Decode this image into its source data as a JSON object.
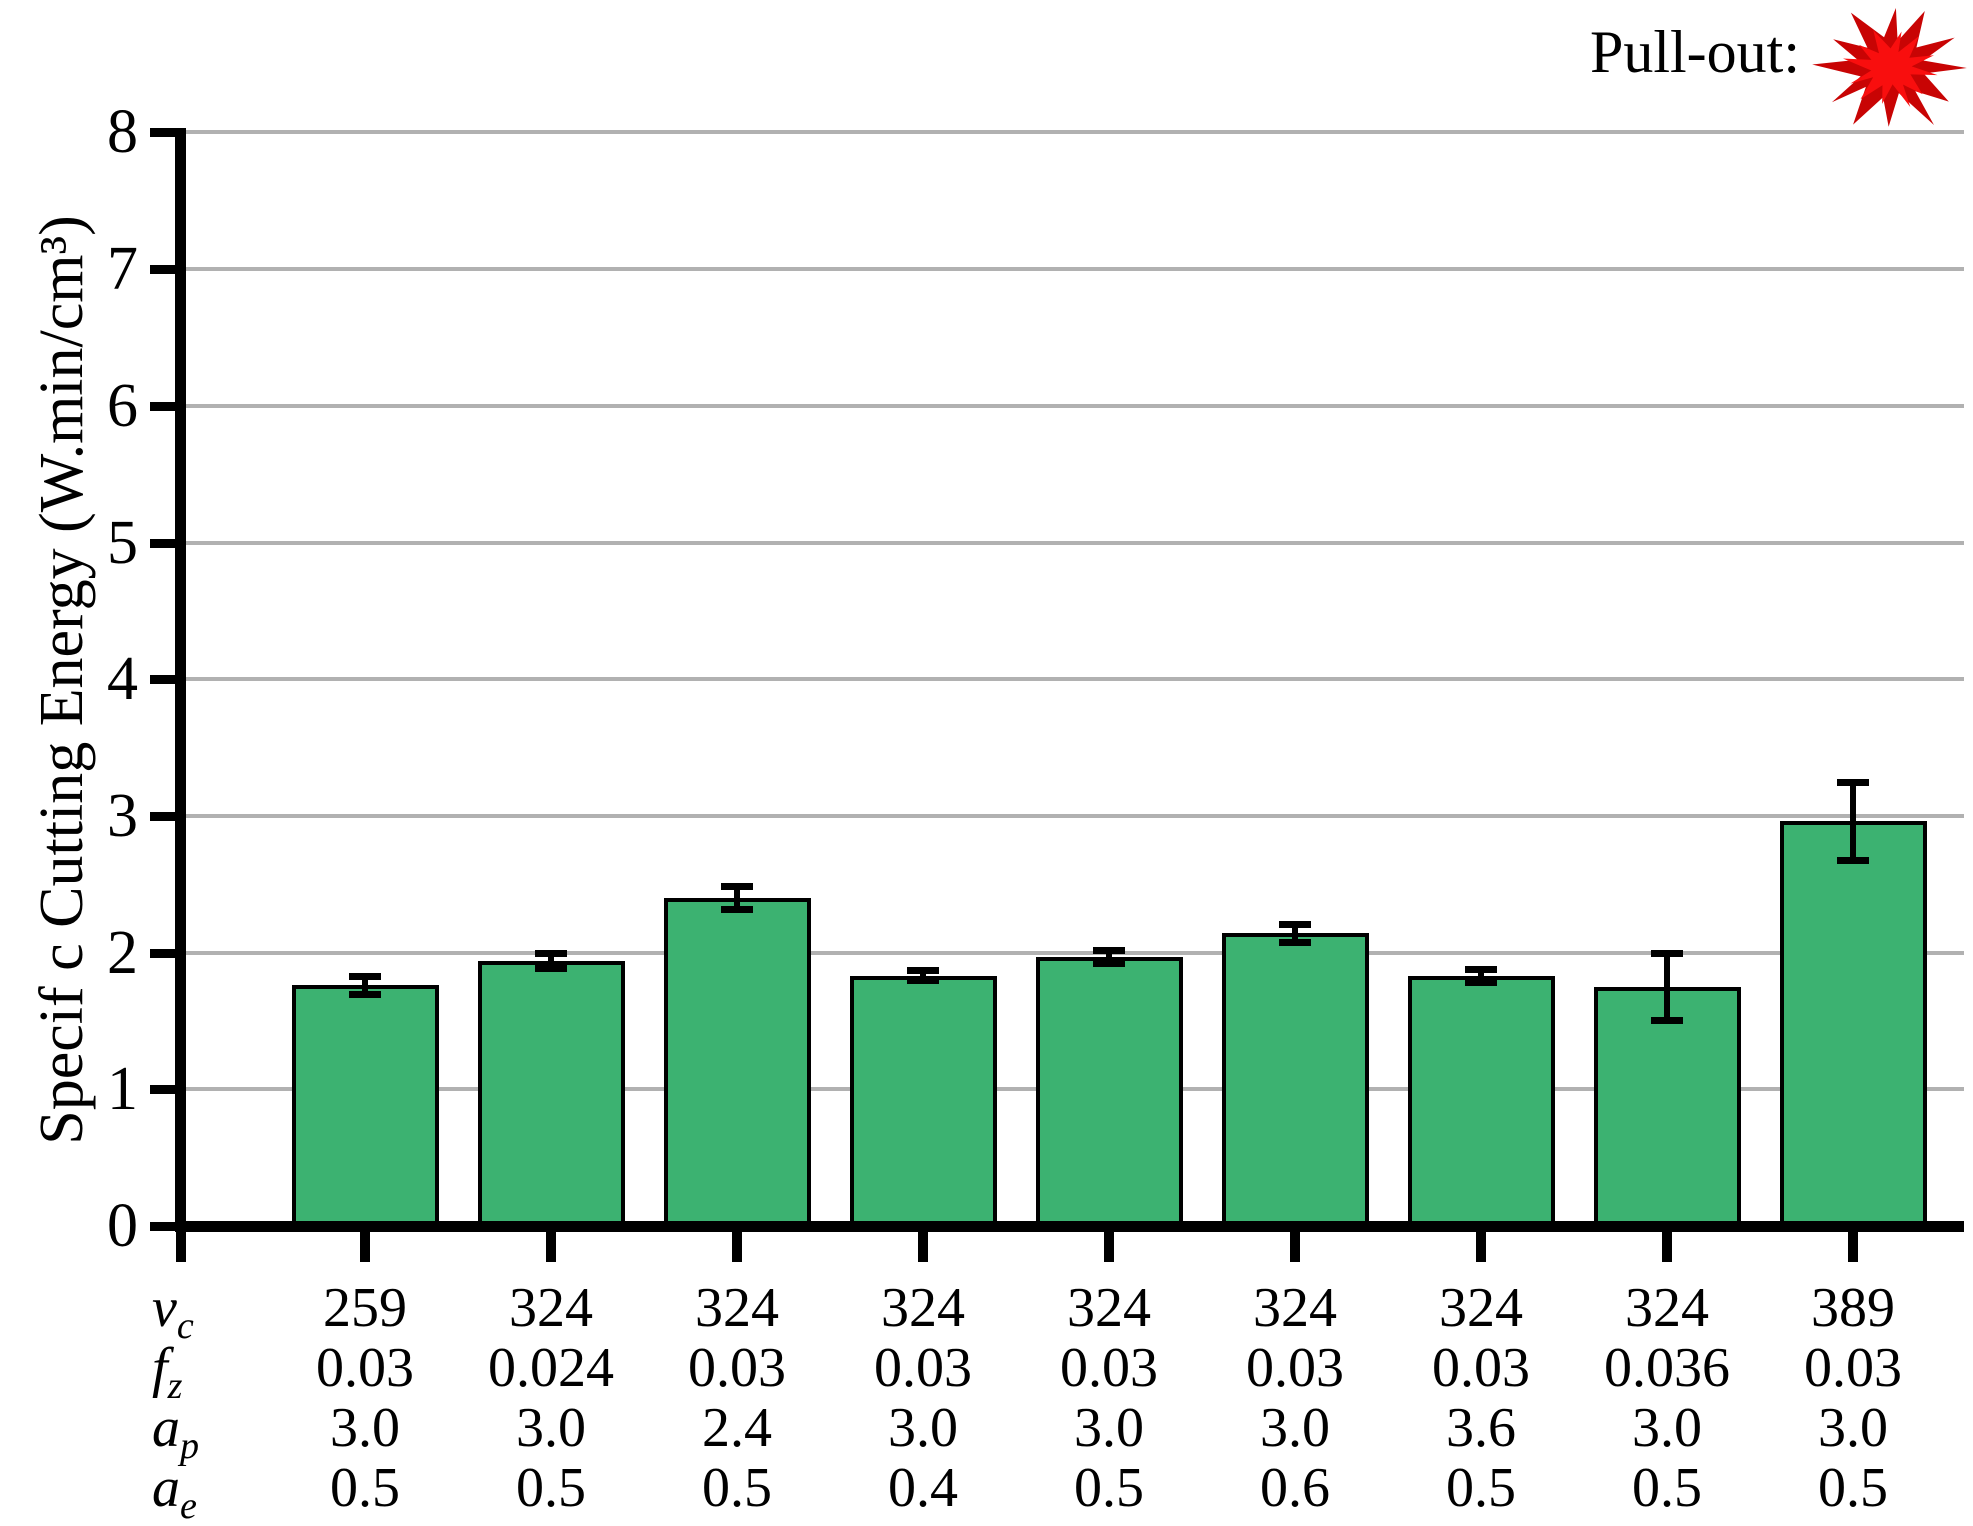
{
  "legend": {
    "label": "Pull-out:",
    "marker": "red-starburst"
  },
  "chart_data": {
    "type": "bar",
    "title": "",
    "xlabel": "",
    "ylabel": "Specif c Cutting Energy (W.min/cm³)",
    "ylim": [
      0,
      8
    ],
    "yticks": [
      0,
      1,
      2,
      3,
      4,
      5,
      6,
      7,
      8
    ],
    "grid": true,
    "legend_label": "Pull-out:",
    "legend_marker": "red-starburst",
    "n_bars": 9,
    "values": [
      1.76,
      1.94,
      2.4,
      1.83,
      1.97,
      2.14,
      1.83,
      1.75,
      2.96
    ],
    "errors": [
      0.07,
      0.06,
      0.09,
      0.04,
      0.05,
      0.07,
      0.05,
      0.25,
      0.29
    ],
    "x_parameter_rows": [
      {
        "symbol": "v",
        "sub": "c",
        "values": [
          "259",
          "324",
          "324",
          "324",
          "324",
          "324",
          "324",
          "324",
          "389"
        ]
      },
      {
        "symbol": "f",
        "sub": "z",
        "values": [
          "0.03",
          "0.024",
          "0.03",
          "0.03",
          "0.03",
          "0.03",
          "0.03",
          "0.036",
          "0.03"
        ]
      },
      {
        "symbol": "a",
        "sub": "p",
        "values": [
          "3.0",
          "3.0",
          "2.4",
          "3.0",
          "3.0",
          "3.0",
          "3.6",
          "3.0",
          "3.0"
        ]
      },
      {
        "symbol": "a",
        "sub": "e",
        "values": [
          "0.5",
          "0.5",
          "0.5",
          "0.4",
          "0.5",
          "0.6",
          "0.5",
          "0.5",
          "0.5"
        ]
      }
    ],
    "colors": {
      "bar_fill": "#3CB271",
      "bar_border": "#000000",
      "gridline": "#B1B1B1",
      "axis": "#000000",
      "starburst_outer": "#C80404",
      "starburst_inner": "#F90E0E",
      "background": "#FFFFFF"
    }
  }
}
